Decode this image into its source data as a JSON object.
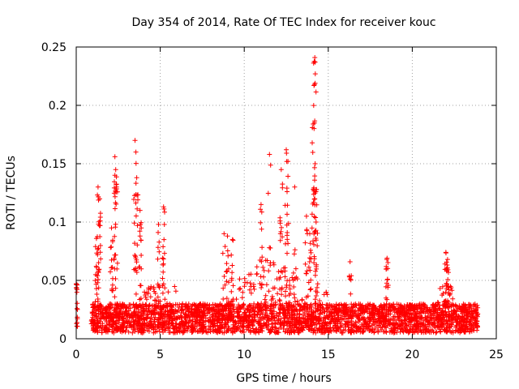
{
  "chart_data": {
    "type": "scatter",
    "title": "Day 354 of 2014, Rate Of TEC Index for receiver kouc",
    "xlabel": "GPS time / hours",
    "ylabel": "ROTI / TECUs",
    "xlim": [
      0,
      25
    ],
    "ylim": [
      0,
      0.25
    ],
    "x_ticks": [
      0,
      5,
      10,
      15,
      20,
      25
    ],
    "y_ticks": [
      0,
      0.05,
      0.1,
      0.15,
      0.2,
      0.25
    ],
    "x_tick_labels": [
      "0",
      "5",
      "10",
      "15",
      "20",
      "25"
    ],
    "y_tick_labels": [
      "0",
      "0.05",
      "0.1",
      "0.15",
      "0.2",
      "0.25"
    ],
    "grid": true,
    "marker": "+",
    "color": "#ff0000",
    "series": [
      {
        "name": "ROTI",
        "data_coverage_hours": [
          0,
          23.9
        ],
        "baseline_range": [
          0.005,
          0.03
        ],
        "spikes": [
          {
            "x": 0.0,
            "y": 0.047
          },
          {
            "x": 1.2,
            "y": 0.086
          },
          {
            "x": 1.3,
            "y": 0.13
          },
          {
            "x": 1.4,
            "y": 0.12
          },
          {
            "x": 2.1,
            "y": 0.095
          },
          {
            "x": 2.3,
            "y": 0.156
          },
          {
            "x": 2.35,
            "y": 0.145
          },
          {
            "x": 2.4,
            "y": 0.13
          },
          {
            "x": 3.5,
            "y": 0.17
          },
          {
            "x": 3.55,
            "y": 0.16
          },
          {
            "x": 3.6,
            "y": 0.138
          },
          {
            "x": 3.8,
            "y": 0.11
          },
          {
            "x": 4.9,
            "y": 0.098
          },
          {
            "x": 5.2,
            "y": 0.113
          },
          {
            "x": 8.8,
            "y": 0.09
          },
          {
            "x": 9.0,
            "y": 0.088
          },
          {
            "x": 9.3,
            "y": 0.085
          },
          {
            "x": 11.0,
            "y": 0.115
          },
          {
            "x": 11.5,
            "y": 0.158
          },
          {
            "x": 12.2,
            "y": 0.145
          },
          {
            "x": 12.5,
            "y": 0.162
          },
          {
            "x": 12.6,
            "y": 0.152
          },
          {
            "x": 13.0,
            "y": 0.13
          },
          {
            "x": 13.7,
            "y": 0.105
          },
          {
            "x": 13.9,
            "y": 0.09
          },
          {
            "x": 14.1,
            "y": 0.184
          },
          {
            "x": 14.15,
            "y": 0.217
          },
          {
            "x": 14.2,
            "y": 0.241
          },
          {
            "x": 14.22,
            "y": 0.237
          },
          {
            "x": 14.3,
            "y": 0.128
          },
          {
            "x": 16.3,
            "y": 0.066
          },
          {
            "x": 18.5,
            "y": 0.069
          },
          {
            "x": 22.0,
            "y": 0.074
          },
          {
            "x": 22.1,
            "y": 0.068
          }
        ]
      }
    ]
  }
}
